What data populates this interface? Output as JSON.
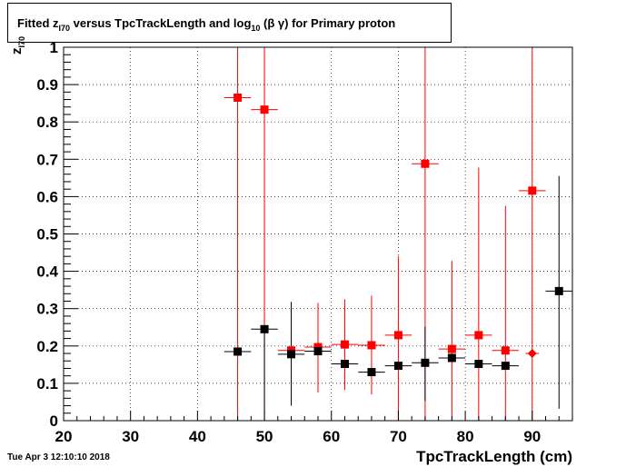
{
  "title": {
    "part1": "Fitted  z",
    "sub1": "I70",
    "part2": "  versus TpcTrackLength and log",
    "sub2": "10",
    "part3": " (β γ) for Primary proton"
  },
  "timestamp": "Tue Apr  3 12:10:10 2018",
  "chart_data": {
    "type": "scatter",
    "title": "Fitted z_I70 versus TpcTrackLength and log10 (β γ) for Primary proton",
    "xlabel": "TpcTrackLength (cm)",
    "ylabel": "z_I70",
    "ylabel_main": "z",
    "ylabel_sub": "I70",
    "xlim": [
      20,
      96
    ],
    "ylim": [
      0,
      1
    ],
    "xticks": [
      20,
      30,
      40,
      50,
      60,
      70,
      80,
      90
    ],
    "yticks": [
      0,
      0.1,
      0.2,
      0.3,
      0.4,
      0.5,
      0.6,
      0.7,
      0.8,
      0.9,
      1
    ],
    "ytick_labels": [
      "0",
      "0.1",
      "0.2",
      "0.3",
      "0.4",
      "0.5",
      "0.6",
      "0.7",
      "0.8",
      "0.9",
      "1"
    ],
    "grid": true,
    "series": [
      {
        "color": "#ff0000",
        "marker": "square",
        "points": [
          {
            "x": 46,
            "y": 0.865,
            "xerr": 2,
            "ylo": 0,
            "yhi": 1
          },
          {
            "x": 50,
            "y": 0.833,
            "xerr": 2,
            "ylo": 0,
            "yhi": 1
          },
          {
            "x": 54,
            "y": 0.188,
            "xerr": 2,
            "ylo": 0.185,
            "yhi": 0.19
          },
          {
            "x": 58,
            "y": 0.197,
            "xerr": 2,
            "ylo": 0.075,
            "yhi": 0.315
          },
          {
            "x": 62,
            "y": 0.204,
            "xerr": 2,
            "ylo": 0.082,
            "yhi": 0.325
          },
          {
            "x": 66,
            "y": 0.202,
            "xerr": 2,
            "ylo": 0.07,
            "yhi": 0.335
          },
          {
            "x": 70,
            "y": 0.229,
            "xerr": 2,
            "ylo": 0,
            "yhi": 0.44
          },
          {
            "x": 74,
            "y": 0.688,
            "xerr": 2,
            "ylo": 0,
            "yhi": 1
          },
          {
            "x": 78,
            "y": 0.192,
            "xerr": 2,
            "ylo": 0,
            "yhi": 0.428
          },
          {
            "x": 82,
            "y": 0.229,
            "xerr": 2,
            "ylo": 0,
            "yhi": 0.678
          },
          {
            "x": 86,
            "y": 0.188,
            "xerr": 2,
            "ylo": 0,
            "yhi": 0.575
          },
          {
            "x": 90,
            "y": 0.616,
            "xerr": 2,
            "ylo": 0,
            "yhi": 1
          }
        ]
      },
      {
        "color": "#000000",
        "marker": "square",
        "points": [
          {
            "x": 46,
            "y": 0.185,
            "xerr": 2,
            "ylo": 0.183,
            "yhi": 0.187
          },
          {
            "x": 50,
            "y": 0.245,
            "xerr": 2,
            "ylo": 0,
            "yhi": 0.248
          },
          {
            "x": 54,
            "y": 0.178,
            "xerr": 2,
            "ylo": 0.04,
            "yhi": 0.318
          },
          {
            "x": 58,
            "y": 0.186,
            "xerr": 2,
            "ylo": 0.184,
            "yhi": 0.188
          },
          {
            "x": 62,
            "y": 0.152,
            "xerr": 2,
            "ylo": 0.15,
            "yhi": 0.154
          },
          {
            "x": 66,
            "y": 0.13,
            "xerr": 2,
            "ylo": 0.128,
            "yhi": 0.132
          },
          {
            "x": 70,
            "y": 0.147,
            "xerr": 2,
            "ylo": 0.145,
            "yhi": 0.149
          },
          {
            "x": 74,
            "y": 0.155,
            "xerr": 2,
            "ylo": 0.053,
            "yhi": 0.252
          },
          {
            "x": 78,
            "y": 0.168,
            "xerr": 2,
            "ylo": 0.166,
            "yhi": 0.17
          },
          {
            "x": 82,
            "y": 0.152,
            "xerr": 2,
            "ylo": 0.15,
            "yhi": 0.154
          },
          {
            "x": 86,
            "y": 0.147,
            "xerr": 2,
            "ylo": 0.145,
            "yhi": 0.149
          },
          {
            "x": 94,
            "y": 0.347,
            "xerr": 2,
            "ylo": 0.032,
            "yhi": 0.655
          }
        ]
      },
      {
        "color": "#ff0000",
        "marker": "diamond",
        "points": [
          {
            "x": 90,
            "y": 0.18,
            "xerr": 1,
            "ylo": 0.18,
            "yhi": 0.18
          }
        ]
      }
    ]
  }
}
